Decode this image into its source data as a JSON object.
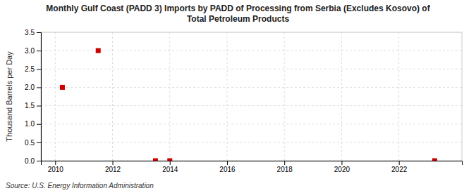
{
  "chart_data": {
    "type": "scatter",
    "title": "Monthly Gulf Coast (PADD 3) Imports by PADD of Processing from Serbia (Excludes Kosovo) of\nTotal Petroleum Products",
    "ylabel": "Thousand Barrels per Day",
    "annotations": [
      "Source: U.S. Energy Information Administration"
    ],
    "x": [
      2010.25,
      2011.5,
      2013.5,
      2014.0,
      2023.25
    ],
    "values": [
      2.0,
      3.0,
      0.0,
      0.0,
      0.0
    ],
    "color": "#cc0000",
    "marker": "square",
    "xlim": [
      2009.5,
      2024.2
    ],
    "ylim": [
      0.0,
      3.5
    ],
    "xticks": [
      2010,
      2012,
      2014,
      2016,
      2018,
      2020,
      2022
    ],
    "yticks": [
      {
        "value": 0.0,
        "label": "0.0"
      },
      0.5,
      {
        "value": 1.0,
        "label": "1.0"
      },
      1.5,
      {
        "value": 2.0,
        "label": "2.0"
      },
      2.5,
      {
        "value": 3.0,
        "label": "3.0"
      },
      3.5
    ],
    "grid": true
  }
}
